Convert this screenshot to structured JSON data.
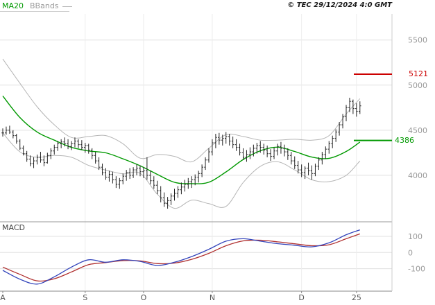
{
  "meta": {
    "copyright": "© TEC 29/12/2024 4:0 GMT"
  },
  "colors": {
    "grid": "#e0e0e0",
    "month_grid": "#ededed",
    "candle": "#222222",
    "tick_label": "#999999",
    "month_label": "#555555",
    "axis": "#888888",
    "border": "#cccccc",
    "separator": "#999999",
    "legend_underline": "#cccccc"
  },
  "chart_data": [
    {
      "type": "candlestick",
      "legend": [
        {
          "label": "MA20",
          "color": "#009900"
        },
        {
          "label": "BBands",
          "color": "#b5b5b5"
        }
      ],
      "x_axis": {
        "ticks": [
          {
            "label": "A",
            "index": 0
          },
          {
            "label": "S",
            "index": 24
          },
          {
            "label": "O",
            "index": 41
          },
          {
            "label": "N",
            "index": 61
          },
          {
            "label": "D",
            "index": 87
          },
          {
            "label": "25",
            "index": 103
          }
        ]
      },
      "y_axis": {
        "min": 3515,
        "max": 5790,
        "gridlines": [
          5500,
          5000,
          4500,
          4000
        ]
      },
      "levels": [
        {
          "label": "5121",
          "value": 5121,
          "color": "#cc0000"
        },
        {
          "label": "4386",
          "value": 4386,
          "color": "#009900"
        }
      ],
      "candles_hlc": [
        [
          4520,
          4430,
          4470
        ],
        [
          4540,
          4450,
          4500
        ],
        [
          4550,
          4460,
          4480
        ],
        [
          4500,
          4410,
          4440
        ],
        [
          4460,
          4350,
          4380
        ],
        [
          4400,
          4280,
          4300
        ],
        [
          4330,
          4220,
          4240
        ],
        [
          4270,
          4150,
          4180
        ],
        [
          4220,
          4100,
          4130
        ],
        [
          4200,
          4080,
          4160
        ],
        [
          4230,
          4120,
          4200
        ],
        [
          4260,
          4140,
          4170
        ],
        [
          4220,
          4100,
          4140
        ],
        [
          4250,
          4130,
          4220
        ],
        [
          4300,
          4180,
          4270
        ],
        [
          4340,
          4230,
          4310
        ],
        [
          4380,
          4270,
          4350
        ],
        [
          4400,
          4300,
          4370
        ],
        [
          4420,
          4320,
          4350
        ],
        [
          4400,
          4290,
          4320
        ],
        [
          4380,
          4280,
          4350
        ],
        [
          4420,
          4310,
          4380
        ],
        [
          4400,
          4300,
          4340
        ],
        [
          4390,
          4280,
          4310
        ],
        [
          4360,
          4250,
          4330
        ],
        [
          4350,
          4240,
          4280
        ],
        [
          4300,
          4180,
          4220
        ],
        [
          4260,
          4130,
          4160
        ],
        [
          4200,
          4060,
          4090
        ],
        [
          4130,
          4000,
          4030
        ],
        [
          4080,
          3950,
          3980
        ],
        [
          4050,
          3930,
          4010
        ],
        [
          4040,
          3910,
          3950
        ],
        [
          3990,
          3860,
          3900
        ],
        [
          3970,
          3850,
          3940
        ],
        [
          4020,
          3900,
          3990
        ],
        [
          4060,
          3940,
          4030
        ],
        [
          4080,
          3960,
          4000
        ],
        [
          4090,
          3970,
          4060
        ],
        [
          4120,
          4000,
          4080
        ],
        [
          4110,
          3990,
          4040
        ],
        [
          4090,
          3970,
          4050
        ],
        [
          4200,
          3950,
          4000
        ],
        [
          4050,
          3900,
          3940
        ],
        [
          3990,
          3850,
          3890
        ],
        [
          3940,
          3790,
          3830
        ],
        [
          3880,
          3700,
          3750
        ],
        [
          3810,
          3650,
          3690
        ],
        [
          3760,
          3630,
          3720
        ],
        [
          3800,
          3670,
          3770
        ],
        [
          3850,
          3720,
          3800
        ],
        [
          3880,
          3750,
          3840
        ],
        [
          3920,
          3790,
          3870
        ],
        [
          3950,
          3820,
          3900
        ],
        [
          3970,
          3850,
          3930
        ],
        [
          3990,
          3860,
          3950
        ],
        [
          4010,
          3890,
          3980
        ],
        [
          4050,
          3920,
          4020
        ],
        [
          4120,
          3980,
          4090
        ],
        [
          4200,
          4060,
          4170
        ],
        [
          4300,
          4140,
          4260
        ],
        [
          4400,
          4220,
          4360
        ],
        [
          4460,
          4300,
          4420
        ],
        [
          4470,
          4340,
          4390
        ],
        [
          4450,
          4330,
          4410
        ],
        [
          4480,
          4350,
          4430
        ],
        [
          4460,
          4330,
          4380
        ],
        [
          4430,
          4300,
          4340
        ],
        [
          4400,
          4270,
          4310
        ],
        [
          4350,
          4220,
          4250
        ],
        [
          4300,
          4170,
          4200
        ],
        [
          4280,
          4150,
          4230
        ],
        [
          4310,
          4180,
          4260
        ],
        [
          4340,
          4210,
          4300
        ],
        [
          4360,
          4240,
          4330
        ],
        [
          4380,
          4250,
          4310
        ],
        [
          4350,
          4230,
          4280
        ],
        [
          4330,
          4200,
          4240
        ],
        [
          4290,
          4160,
          4210
        ],
        [
          4310,
          4180,
          4270
        ],
        [
          4350,
          4220,
          4320
        ],
        [
          4370,
          4240,
          4300
        ],
        [
          4340,
          4210,
          4260
        ],
        [
          4300,
          4170,
          4220
        ],
        [
          4260,
          4120,
          4160
        ],
        [
          4210,
          4070,
          4110
        ],
        [
          4160,
          4020,
          4060
        ],
        [
          4120,
          3980,
          4030
        ],
        [
          4100,
          3960,
          4080
        ],
        [
          4140,
          4000,
          4050
        ],
        [
          4110,
          3950,
          4020
        ],
        [
          4130,
          3990,
          4100
        ],
        [
          4200,
          4060,
          4170
        ],
        [
          4260,
          4120,
          4230
        ],
        [
          4320,
          4180,
          4290
        ],
        [
          4380,
          4240,
          4350
        ],
        [
          4440,
          4300,
          4410
        ],
        [
          4510,
          4370,
          4480
        ],
        [
          4590,
          4440,
          4560
        ],
        [
          4680,
          4520,
          4650
        ],
        [
          4780,
          4600,
          4750
        ],
        [
          4860,
          4700,
          4820
        ],
        [
          4840,
          4680,
          4740
        ],
        [
          4800,
          4650,
          4710
        ],
        [
          4820,
          4680,
          4770
        ]
      ],
      "overlays": {
        "sample_indices": [
          0,
          5,
          10,
          15,
          20,
          25,
          30,
          35,
          40,
          45,
          50,
          55,
          60,
          65,
          70,
          75,
          80,
          85,
          90,
          95,
          100,
          104
        ],
        "ma20": [
          4880,
          4640,
          4480,
          4390,
          4310,
          4270,
          4249,
          4183,
          4106,
          4010,
          3922,
          3907,
          3923,
          4038,
          4175,
          4272,
          4312,
          4264,
          4202,
          4188,
          4264,
          4369
        ],
        "bb_upper": [
          5290,
          5020,
          4760,
          4560,
          4420,
          4430,
          4440,
          4350,
          4190,
          4230,
          4210,
          4150,
          4300,
          4450,
          4430,
          4390,
          4390,
          4400,
          4390,
          4440,
          4680,
          4850
        ],
        "bb_lower": [
          4470,
          4260,
          4200,
          4220,
          4200,
          4110,
          4058,
          4016,
          4022,
          3790,
          3634,
          3724,
          3686,
          3656,
          3920,
          4100,
          4150,
          4060,
          3950,
          3930,
          4000,
          4160
        ]
      }
    },
    {
      "type": "line",
      "title": "MACD",
      "y_axis": {
        "min": -230,
        "max": 164,
        "gridlines": [
          100,
          0,
          -100
        ]
      },
      "sample_indices": [
        0,
        5,
        10,
        15,
        20,
        25,
        30,
        35,
        40,
        45,
        50,
        55,
        60,
        65,
        70,
        75,
        80,
        85,
        90,
        95,
        100,
        104
      ],
      "series": [
        {
          "name": "MACD",
          "color": "#3344bb",
          "values": [
            -110,
            -165,
            -195,
            -150,
            -90,
            -45,
            -60,
            -45,
            -55,
            -80,
            -60,
            -25,
            20,
            70,
            85,
            70,
            55,
            45,
            35,
            60,
            110,
            140
          ]
        },
        {
          "name": "Signal",
          "color": "#b03030",
          "values": [
            -90,
            -135,
            -175,
            -162,
            -120,
            -75,
            -62,
            -50,
            -52,
            -68,
            -65,
            -42,
            -5,
            42,
            72,
            76,
            66,
            54,
            42,
            48,
            85,
            115
          ]
        }
      ]
    }
  ]
}
